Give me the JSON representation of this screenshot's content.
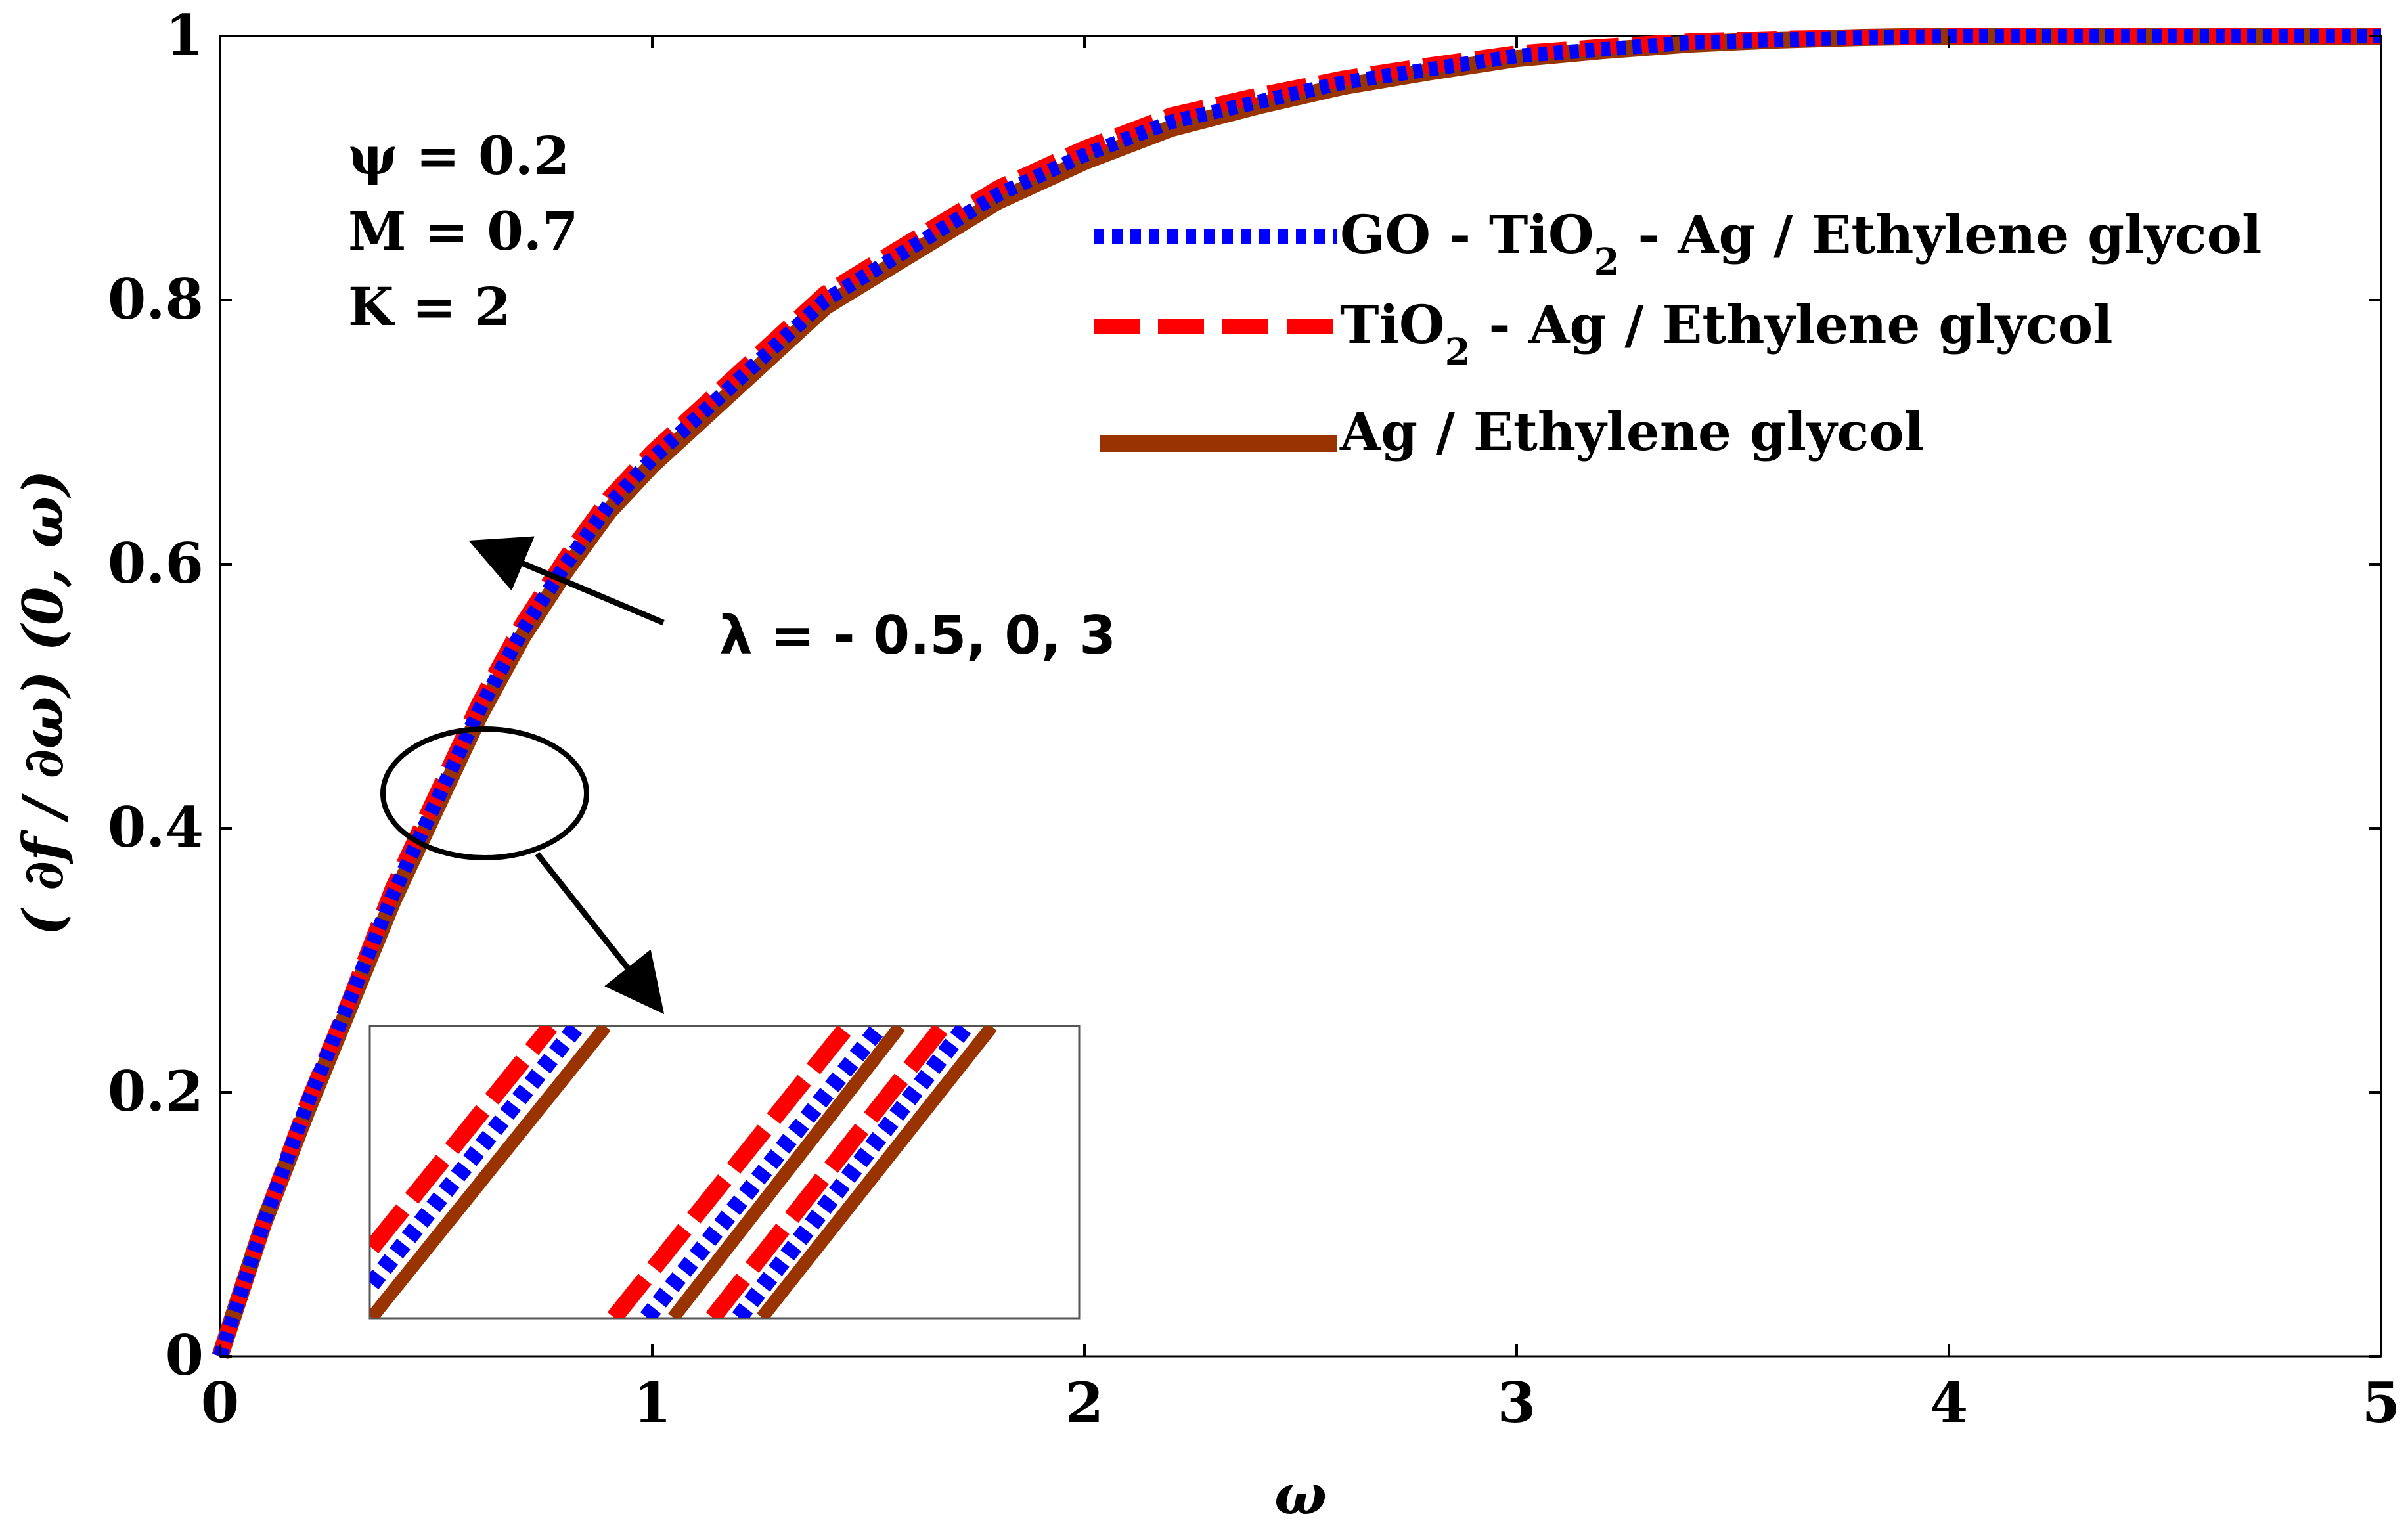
{
  "chart_data": {
    "type": "line",
    "xlabel": "ω",
    "ylabel": "( ∂f / ∂ω) (0, ω)",
    "xlim": [
      0,
      5
    ],
    "ylim": [
      0,
      1
    ],
    "xticks": [
      "0",
      "1",
      "2",
      "3",
      "4",
      "5"
    ],
    "yticks": [
      "0",
      "0.2",
      "0.4",
      "0.6",
      "0.8",
      "1"
    ],
    "grid": false,
    "legend_position": "top-right",
    "parameters": [
      "ψ = 0.2",
      "M = 0.7",
      "K = 2"
    ],
    "annotation": "λ = - 0.5, 0, 3",
    "x": [
      0,
      0.1,
      0.2,
      0.3,
      0.4,
      0.5,
      0.6,
      0.7,
      0.8,
      0.9,
      1.0,
      1.2,
      1.4,
      1.6,
      1.8,
      2.0,
      2.2,
      2.4,
      2.6,
      2.8,
      3.0,
      3.2,
      3.4,
      3.6,
      3.8,
      4.0,
      4.5,
      5.0
    ],
    "series": [
      {
        "name": "GO - TiO2 - Ag / Ethylene glycol",
        "color": "#0000ff",
        "style": "dotted",
        "values": [
          0.0,
          0.1,
          0.19,
          0.27,
          0.35,
          0.42,
          0.49,
          0.55,
          0.6,
          0.645,
          0.68,
          0.74,
          0.8,
          0.84,
          0.88,
          0.91,
          0.935,
          0.95,
          0.965,
          0.975,
          0.985,
          0.99,
          0.995,
          0.997,
          0.999,
          1.0,
          1.0,
          1.0
        ]
      },
      {
        "name": "TiO2 - Ag / Ethylene glycol",
        "color": "#ff0000",
        "style": "dashed",
        "values": [
          0.0,
          0.1,
          0.19,
          0.27,
          0.355,
          0.425,
          0.495,
          0.555,
          0.605,
          0.65,
          0.685,
          0.745,
          0.805,
          0.845,
          0.885,
          0.915,
          0.94,
          0.955,
          0.968,
          0.978,
          0.987,
          0.992,
          0.996,
          0.998,
          0.999,
          1.0,
          1.0,
          1.0
        ]
      },
      {
        "name": "Ag / Ethylene glycol",
        "color": "#993300",
        "style": "solid",
        "values": [
          0.0,
          0.1,
          0.185,
          0.265,
          0.345,
          0.415,
          0.485,
          0.545,
          0.595,
          0.64,
          0.675,
          0.735,
          0.795,
          0.835,
          0.875,
          0.905,
          0.93,
          0.947,
          0.962,
          0.973,
          0.983,
          0.989,
          0.994,
          0.997,
          0.999,
          1.0,
          1.0,
          1.0
        ]
      }
    ]
  }
}
